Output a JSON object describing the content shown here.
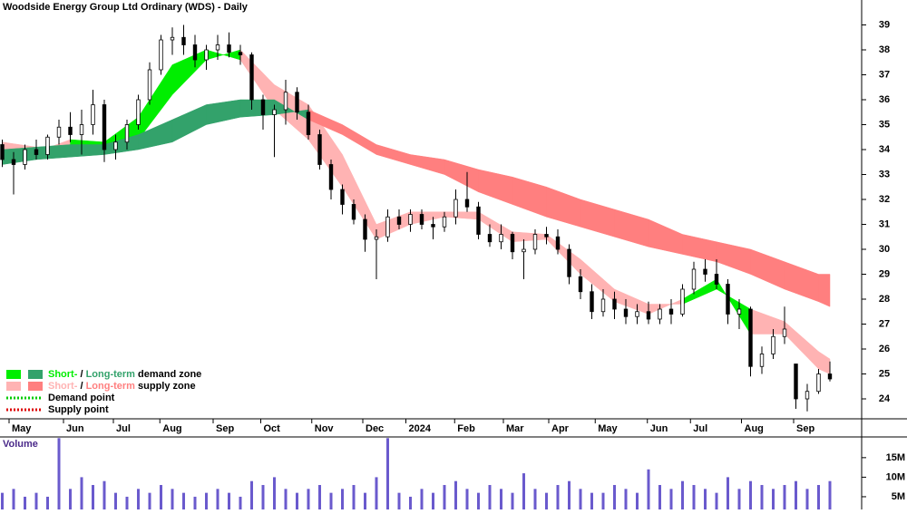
{
  "chart_data": [
    {
      "type": "candlestick",
      "title": "Woodside Energy Group Ltd Ordinary (WDS) - Daily",
      "xlim": [
        -0.2,
        75.8
      ],
      "xticks": [
        {
          "value": 0.6,
          "label": "May"
        },
        {
          "value": 5.4,
          "label": "Jun"
        },
        {
          "value": 9.8,
          "label": "Jul"
        },
        {
          "value": 13.9,
          "label": "Aug"
        },
        {
          "value": 18.6,
          "label": "Sep"
        },
        {
          "value": 22.8,
          "label": "Oct"
        },
        {
          "value": 27.3,
          "label": "Nov"
        },
        {
          "value": 31.8,
          "label": "Dec"
        },
        {
          "value": 35.6,
          "label": "2024"
        },
        {
          "value": 39.9,
          "label": "Feb"
        },
        {
          "value": 44.2,
          "label": "Mar"
        },
        {
          "value": 48.2,
          "label": "Apr"
        },
        {
          "value": 52.3,
          "label": "May"
        },
        {
          "value": 56.9,
          "label": "Jun"
        },
        {
          "value": 60.7,
          "label": "Jul"
        },
        {
          "value": 65.2,
          "label": "Aug"
        },
        {
          "value": 69.8,
          "label": "Sep"
        }
      ],
      "ylim": [
        23.2,
        40
      ],
      "yticks": [
        24,
        25,
        26,
        27,
        28,
        29,
        30,
        31,
        32,
        33,
        34,
        35,
        36,
        37,
        38,
        39
      ],
      "up_color": "#ffffff",
      "down_color": "#000000",
      "ohlc": [
        [
          34.2,
          34.4,
          33.3,
          33.6
        ],
        [
          33.6,
          33.9,
          32.2,
          33.4
        ],
        [
          33.4,
          34.2,
          33.2,
          34.0
        ],
        [
          34.0,
          34.4,
          33.6,
          33.8
        ],
        [
          33.8,
          34.6,
          33.6,
          34.5
        ],
        [
          34.5,
          35.2,
          34.2,
          34.9
        ],
        [
          34.9,
          35.5,
          34.3,
          34.6
        ],
        [
          34.6,
          35.6,
          33.8,
          35.0
        ],
        [
          35.0,
          36.4,
          34.6,
          35.8
        ],
        [
          35.8,
          36.0,
          33.5,
          34.0
        ],
        [
          34.0,
          34.6,
          33.6,
          34.3
        ],
        [
          34.3,
          35.2,
          34.0,
          35.0
        ],
        [
          35.0,
          36.2,
          34.8,
          36.0
        ],
        [
          36.0,
          37.5,
          35.8,
          37.2
        ],
        [
          37.2,
          38.6,
          37.0,
          38.4
        ],
        [
          38.4,
          38.9,
          37.8,
          38.5
        ],
        [
          38.5,
          39.0,
          37.8,
          38.2
        ],
        [
          38.2,
          38.6,
          37.3,
          37.6
        ],
        [
          37.6,
          38.2,
          37.2,
          38.0
        ],
        [
          38.0,
          38.6,
          37.6,
          38.2
        ],
        [
          38.2,
          38.7,
          37.7,
          37.9
        ],
        [
          37.9,
          38.2,
          37.4,
          37.8
        ],
        [
          37.8,
          37.9,
          35.6,
          36.0
        ],
        [
          36.0,
          36.2,
          34.8,
          35.4
        ],
        [
          35.4,
          35.8,
          33.7,
          35.6
        ],
        [
          35.6,
          36.8,
          35.0,
          36.3
        ],
        [
          36.3,
          36.5,
          35.2,
          35.5
        ],
        [
          35.5,
          35.8,
          34.4,
          34.6
        ],
        [
          34.6,
          34.8,
          33.2,
          33.4
        ],
        [
          33.4,
          33.6,
          32.0,
          32.4
        ],
        [
          32.4,
          32.6,
          31.4,
          31.8
        ],
        [
          31.8,
          32.0,
          31.0,
          31.2
        ],
        [
          31.2,
          31.4,
          29.9,
          30.4
        ],
        [
          30.4,
          30.8,
          28.8,
          30.5
        ],
        [
          30.5,
          31.6,
          30.3,
          31.3
        ],
        [
          31.3,
          31.6,
          30.8,
          31.0
        ],
        [
          31.0,
          31.6,
          30.7,
          31.4
        ],
        [
          31.4,
          31.6,
          30.8,
          31.0
        ],
        [
          31.0,
          31.3,
          30.4,
          30.9
        ],
        [
          30.9,
          31.5,
          30.7,
          31.3
        ],
        [
          31.3,
          32.4,
          31.0,
          32.0
        ],
        [
          32.0,
          33.1,
          31.5,
          31.7
        ],
        [
          31.7,
          31.9,
          30.4,
          30.6
        ],
        [
          30.6,
          31.0,
          30.1,
          30.3
        ],
        [
          30.3,
          31.0,
          30.0,
          30.6
        ],
        [
          30.6,
          30.7,
          29.6,
          29.9
        ],
        [
          29.9,
          30.4,
          28.8,
          30.0
        ],
        [
          30.0,
          30.8,
          29.8,
          30.6
        ],
        [
          30.6,
          30.9,
          30.2,
          30.5
        ],
        [
          30.5,
          30.8,
          29.8,
          30.0
        ],
        [
          30.0,
          30.2,
          28.6,
          28.9
        ],
        [
          28.9,
          29.2,
          28.0,
          28.3
        ],
        [
          28.3,
          28.6,
          27.2,
          27.5
        ],
        [
          27.5,
          28.4,
          27.3,
          28.0
        ],
        [
          28.0,
          28.3,
          27.2,
          27.6
        ],
        [
          27.6,
          28.0,
          27.0,
          27.3
        ],
        [
          27.3,
          27.8,
          27.0,
          27.5
        ],
        [
          27.5,
          27.9,
          27.0,
          27.2
        ],
        [
          27.2,
          27.8,
          27.0,
          27.6
        ],
        [
          27.6,
          28.0,
          27.0,
          27.4
        ],
        [
          27.4,
          28.6,
          27.3,
          28.4
        ],
        [
          28.4,
          29.5,
          28.2,
          29.2
        ],
        [
          29.2,
          29.6,
          28.7,
          29.0
        ],
        [
          29.0,
          29.6,
          28.4,
          28.6
        ],
        [
          28.6,
          28.8,
          27.0,
          27.4
        ],
        [
          27.4,
          28.0,
          26.8,
          27.6
        ],
        [
          27.6,
          27.7,
          24.9,
          25.3
        ],
        [
          25.3,
          26.1,
          25.0,
          25.8
        ],
        [
          25.8,
          26.8,
          25.6,
          26.5
        ],
        [
          26.5,
          27.7,
          26.2,
          26.8
        ],
        [
          25.4,
          25.4,
          23.6,
          24.0
        ],
        [
          24.0,
          24.6,
          23.5,
          24.3
        ],
        [
          24.3,
          25.2,
          24.2,
          25.0
        ],
        [
          25.0,
          25.5,
          24.7,
          24.8
        ]
      ],
      "zones": [
        {
          "x": [
            0,
            3,
            6,
            9,
            12,
            15,
            18,
            21,
            24,
            27,
            30,
            33,
            36,
            39,
            42,
            45,
            48,
            51,
            54,
            57,
            60,
            63,
            66,
            69,
            72,
            73
          ],
          "fast": [
            33.8,
            33.9,
            34.4,
            34.3,
            35.3,
            37.4,
            38.0,
            37.6,
            35.6,
            34.4,
            32.5,
            30.4,
            31.0,
            31.3,
            31.2,
            30.3,
            30.4,
            29.0,
            27.9,
            27.4,
            28.0,
            28.8,
            26.6,
            26.6,
            25.2,
            25.0
          ],
          "slow": [
            34.3,
            34.1,
            34.0,
            34.2,
            34.4,
            36.2,
            37.6,
            38.0,
            36.6,
            35.8,
            33.8,
            31.0,
            31.5,
            31.5,
            31.5,
            30.7,
            30.6,
            29.6,
            28.4,
            27.8,
            27.8,
            28.4,
            27.6,
            27.1,
            25.9,
            25.6
          ],
          "demand_color": "#00ee00",
          "supply_color": "#ffb3b3"
        },
        {
          "x": [
            0,
            3,
            6,
            9,
            12,
            15,
            18,
            21,
            24,
            27,
            30,
            33,
            36,
            39,
            42,
            45,
            48,
            51,
            54,
            57,
            60,
            63,
            66,
            69,
            72,
            73
          ],
          "fast": [
            34.0,
            34.1,
            34.2,
            34.2,
            34.6,
            35.2,
            35.8,
            36.0,
            36.0,
            35.2,
            34.6,
            33.8,
            33.4,
            33.0,
            32.3,
            31.8,
            31.3,
            30.9,
            30.5,
            30.1,
            29.8,
            29.5,
            29.0,
            28.4,
            27.9,
            27.7
          ],
          "slow": [
            33.4,
            33.6,
            33.7,
            33.8,
            34.0,
            34.3,
            35.0,
            35.3,
            35.4,
            35.6,
            35.0,
            34.2,
            33.8,
            33.6,
            33.2,
            32.9,
            32.5,
            32.0,
            31.6,
            31.2,
            30.6,
            30.3,
            30.0,
            29.5,
            29.0,
            29.0
          ],
          "demand_color": "#33a26b",
          "supply_color": "#ff7f7f"
        }
      ],
      "legend": [
        {
          "parts": [
            "Short-",
            " / ",
            "Long-term",
            " demand zone"
          ],
          "colors": [
            "#00ee00",
            "#33a26b"
          ]
        },
        {
          "parts": [
            "Short-",
            " / ",
            "Long-term",
            " supply zone"
          ],
          "colors": [
            "#ffb3b3",
            "#ff7f7f"
          ]
        },
        {
          "label": "Demand point",
          "color": "#00cc00"
        },
        {
          "label": "Supply point",
          "color": "#dd0000"
        }
      ]
    },
    {
      "type": "bar",
      "title": "Volume",
      "color": "#6a5acd",
      "ylim": [
        1.74,
        20.3
      ],
      "yticks": [
        {
          "value": 5,
          "label": "5M"
        },
        {
          "value": 10,
          "label": "10M"
        },
        {
          "value": 15,
          "label": "15M"
        }
      ],
      "values": [
        6,
        7,
        5,
        6,
        5,
        20,
        7,
        10,
        8,
        9,
        6,
        5,
        7,
        6,
        8,
        7,
        6,
        5,
        6,
        7,
        6,
        5,
        9,
        8,
        10,
        7,
        6,
        7,
        8,
        6,
        7,
        8,
        6,
        10,
        20,
        6,
        5,
        7,
        6,
        8,
        9,
        7,
        6,
        8,
        7,
        6,
        11,
        7,
        6,
        8,
        9,
        7,
        6,
        6,
        8,
        7,
        6,
        12,
        8,
        7,
        9,
        8,
        7,
        6,
        10,
        7,
        9,
        8,
        7,
        8,
        9,
        7,
        8,
        9
      ]
    }
  ]
}
